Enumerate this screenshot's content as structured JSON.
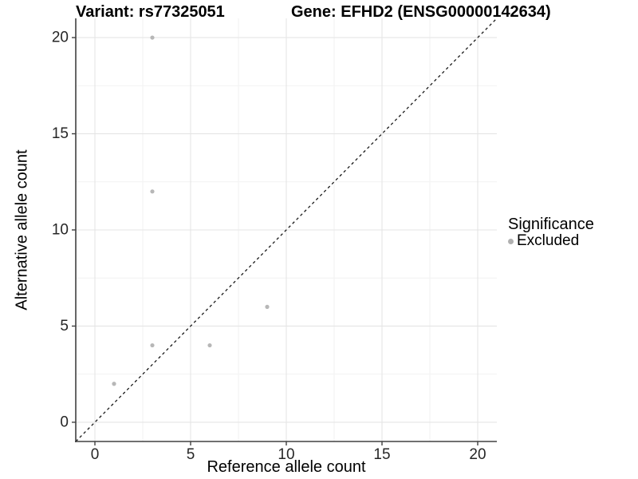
{
  "chart_data": {
    "type": "scatter",
    "title_left": "Variant: rs77325051",
    "title_right": "Gene: EFHD2 (ENSG00000142634)",
    "xlabel": "Reference allele count",
    "ylabel": "Alternative allele count",
    "xlim": [
      -1,
      21
    ],
    "ylim": [
      -1,
      21
    ],
    "ticks": [
      0,
      5,
      10,
      15,
      20
    ],
    "minor_ticks": [
      2.5,
      7.5,
      12.5,
      17.5
    ],
    "grid": {
      "major_color": "#e5e5e5",
      "minor_color": "#f2f2f2",
      "background": "#ffffff"
    },
    "axis_color": "#404040",
    "tick_label_color": "#262626",
    "identity_line": {
      "type": "dashed",
      "from": [
        -1,
        -1
      ],
      "to": [
        21,
        21
      ],
      "color": "#1a1a1a"
    },
    "series": [
      {
        "name": "Excluded",
        "color": "#b7b7b7",
        "points": [
          {
            "x": 3,
            "y": 20
          },
          {
            "x": 3,
            "y": 12
          },
          {
            "x": 9,
            "y": 6
          },
          {
            "x": 6,
            "y": 4
          },
          {
            "x": 3,
            "y": 4
          },
          {
            "x": 1,
            "y": 2
          }
        ]
      }
    ],
    "legend": {
      "title": "Significance",
      "position": "right",
      "entries": [
        {
          "label": "Excluded",
          "color": "#b0b0b0"
        }
      ]
    }
  }
}
